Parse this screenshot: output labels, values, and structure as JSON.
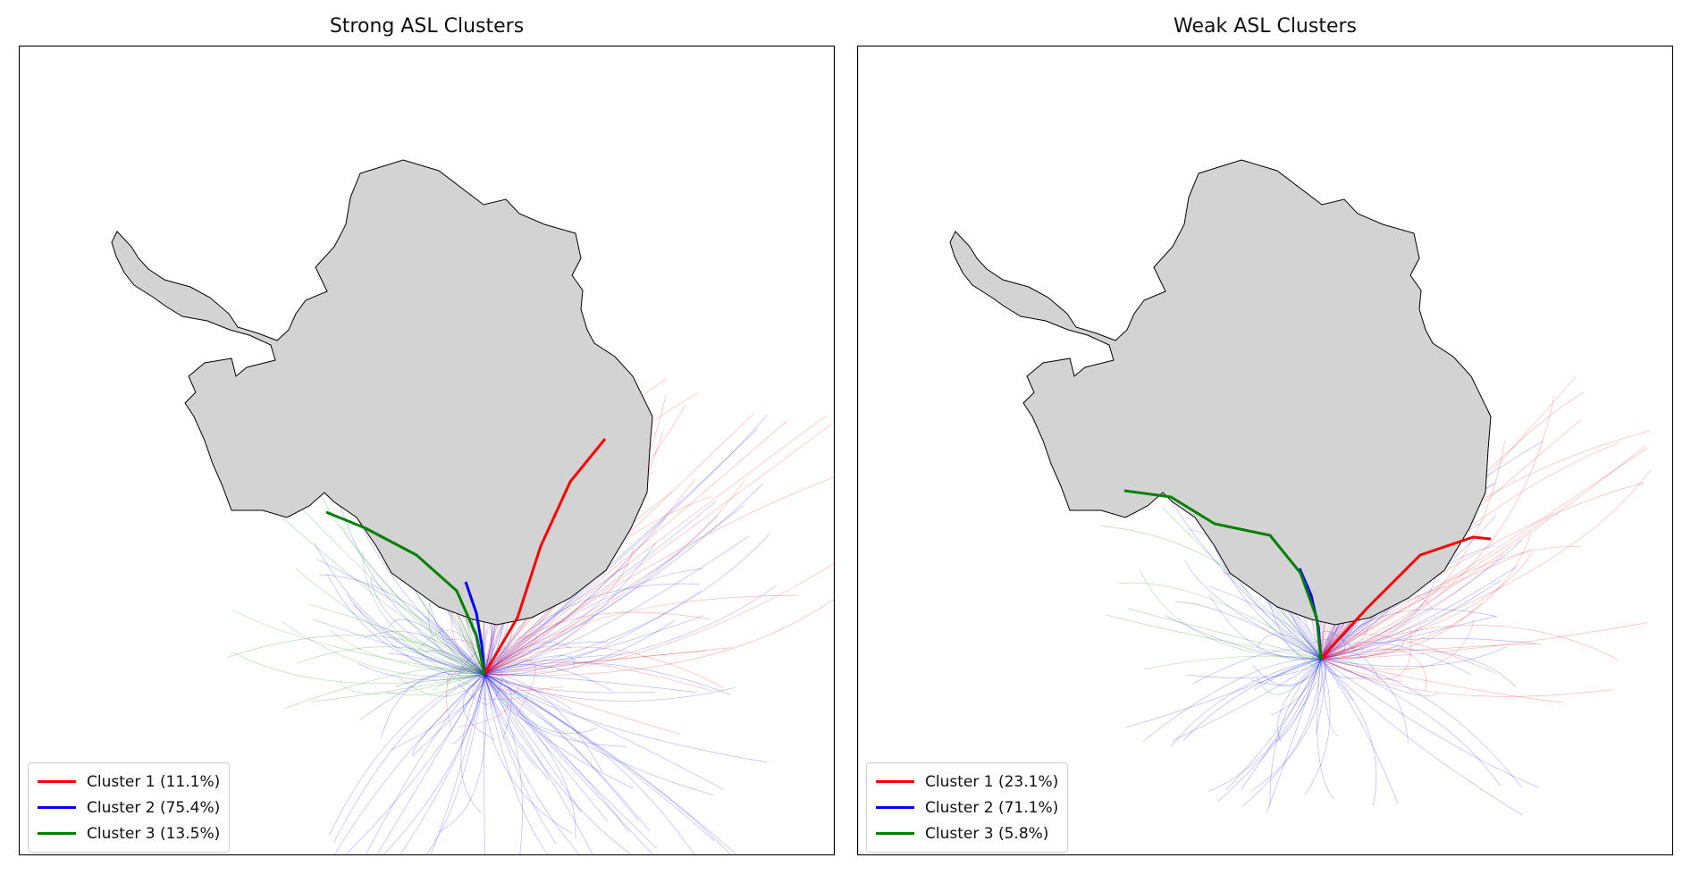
{
  "panels": [
    {
      "title": "Strong ASL Clusters",
      "legend": [
        {
          "label": "Cluster 1 (11.1%)",
          "color": "#ff0000"
        },
        {
          "label": "Cluster 2 (75.4%)",
          "color": "#0000ff"
        },
        {
          "label": "Cluster 3 (13.5%)",
          "color": "#008000"
        }
      ]
    },
    {
      "title": "Weak ASL Clusters",
      "legend": [
        {
          "label": "Cluster 1 (23.1%)",
          "color": "#ff0000"
        },
        {
          "label": "Cluster 2 (71.1%)",
          "color": "#0000ff"
        },
        {
          "label": "Cluster 3 (5.8%)",
          "color": "#008000"
        }
      ]
    }
  ],
  "colors": {
    "land": "#d3d3d3",
    "coast": "#000000",
    "frame": "#000000"
  }
}
